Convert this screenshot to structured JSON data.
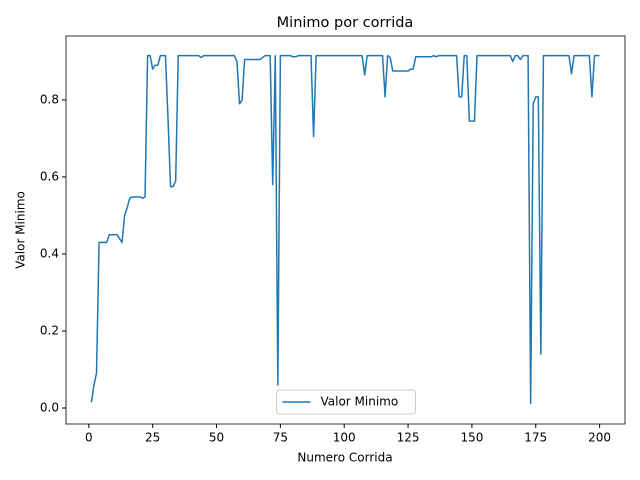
{
  "chart_data": {
    "type": "line",
    "title": "Minimo por corrida",
    "xlabel": "Numero Corrida",
    "ylabel": "Valor Minimo",
    "x": [
      1,
      2,
      3,
      4,
      5,
      6,
      7,
      8,
      9,
      10,
      11,
      12,
      13,
      14,
      15,
      16,
      17,
      18,
      19,
      20,
      21,
      22,
      23,
      24,
      25,
      26,
      27,
      28,
      29,
      30,
      31,
      32,
      33,
      34,
      35,
      36,
      37,
      38,
      39,
      40,
      41,
      42,
      43,
      44,
      45,
      46,
      47,
      48,
      49,
      50,
      51,
      52,
      53,
      54,
      55,
      56,
      57,
      58,
      59,
      60,
      61,
      62,
      63,
      64,
      65,
      66,
      67,
      68,
      69,
      70,
      71,
      72,
      73,
      74,
      75,
      76,
      77,
      78,
      79,
      80,
      81,
      82,
      83,
      84,
      85,
      86,
      87,
      88,
      89,
      90,
      91,
      92,
      93,
      94,
      95,
      96,
      97,
      98,
      99,
      100,
      101,
      102,
      103,
      104,
      105,
      106,
      107,
      108,
      109,
      110,
      111,
      112,
      113,
      114,
      115,
      116,
      117,
      118,
      119,
      120,
      121,
      122,
      123,
      124,
      125,
      126,
      127,
      128,
      129,
      130,
      131,
      132,
      133,
      134,
      135,
      136,
      137,
      138,
      139,
      140,
      141,
      142,
      143,
      144,
      145,
      146,
      147,
      148,
      149,
      150,
      151,
      152,
      153,
      154,
      155,
      156,
      157,
      158,
      159,
      160,
      161,
      162,
      163,
      164,
      165,
      166,
      167,
      168,
      169,
      170,
      171,
      172,
      173,
      174,
      175,
      176,
      177,
      178,
      179,
      180,
      181,
      182,
      183,
      184,
      185,
      186,
      187,
      188,
      189,
      190,
      191,
      192,
      193,
      194,
      195,
      196,
      197,
      198,
      199,
      200
    ],
    "series": [
      {
        "name": "Valor Minimo",
        "color": "#1f77b4",
        "values": [
          0.015,
          0.06,
          0.09,
          0.43,
          0.43,
          0.43,
          0.43,
          0.45,
          0.45,
          0.45,
          0.45,
          0.44,
          0.43,
          0.5,
          0.52,
          0.545,
          0.548,
          0.548,
          0.548,
          0.548,
          0.545,
          0.548,
          0.915,
          0.915,
          0.88,
          0.89,
          0.89,
          0.915,
          0.915,
          0.915,
          0.75,
          0.575,
          0.575,
          0.59,
          0.915,
          0.915,
          0.915,
          0.915,
          0.915,
          0.915,
          0.915,
          0.915,
          0.915,
          0.91,
          0.915,
          0.915,
          0.915,
          0.915,
          0.915,
          0.915,
          0.915,
          0.915,
          0.915,
          0.915,
          0.915,
          0.915,
          0.915,
          0.9,
          0.79,
          0.8,
          0.905,
          0.905,
          0.905,
          0.905,
          0.905,
          0.905,
          0.905,
          0.91,
          0.915,
          0.915,
          0.915,
          0.58,
          0.915,
          0.06,
          0.915,
          0.915,
          0.915,
          0.915,
          0.915,
          0.912,
          0.912,
          0.915,
          0.915,
          0.915,
          0.915,
          0.915,
          0.915,
          0.705,
          0.915,
          0.915,
          0.915,
          0.915,
          0.915,
          0.915,
          0.915,
          0.915,
          0.915,
          0.915,
          0.915,
          0.915,
          0.915,
          0.915,
          0.915,
          0.915,
          0.915,
          0.915,
          0.915,
          0.865,
          0.915,
          0.915,
          0.915,
          0.915,
          0.915,
          0.915,
          0.915,
          0.808,
          0.915,
          0.91,
          0.875,
          0.875,
          0.875,
          0.875,
          0.875,
          0.875,
          0.875,
          0.88,
          0.88,
          0.912,
          0.912,
          0.912,
          0.912,
          0.912,
          0.912,
          0.912,
          0.915,
          0.912,
          0.915,
          0.915,
          0.915,
          0.915,
          0.915,
          0.915,
          0.915,
          0.915,
          0.808,
          0.808,
          0.915,
          0.915,
          0.745,
          0.745,
          0.745,
          0.915,
          0.915,
          0.915,
          0.915,
          0.915,
          0.915,
          0.915,
          0.915,
          0.915,
          0.915,
          0.915,
          0.915,
          0.915,
          0.915,
          0.9,
          0.915,
          0.915,
          0.905,
          0.915,
          0.915,
          0.915,
          0.012,
          0.79,
          0.808,
          0.808,
          0.14,
          0.915,
          0.915,
          0.915,
          0.915,
          0.915,
          0.915,
          0.915,
          0.915,
          0.915,
          0.915,
          0.915,
          0.868,
          0.915,
          0.915,
          0.915,
          0.915,
          0.915,
          0.915,
          0.915,
          0.808,
          0.915,
          0.915,
          0.915
        ]
      }
    ],
    "xlim": [
      -8.95,
      209.95
    ],
    "ylim": [
      -0.0415,
      0.966
    ],
    "xticks": [
      0,
      25,
      50,
      75,
      100,
      125,
      150,
      175,
      200
    ],
    "yticks": [
      {
        "value": 0,
        "label": "0.0"
      },
      {
        "value": 0.2,
        "label": "0.2"
      },
      {
        "value": 0.4,
        "label": "0.4"
      },
      {
        "value": 0.6,
        "label": "0.6"
      },
      {
        "value": 0.8,
        "label": "0.8"
      }
    ],
    "legend": "lower center",
    "grid": false
  }
}
